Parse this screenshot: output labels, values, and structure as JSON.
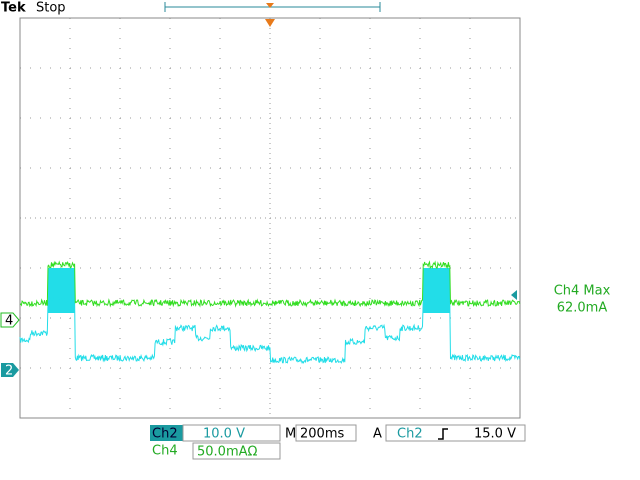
{
  "header": {
    "brand": "Tek",
    "status": "Stop"
  },
  "markers": {
    "ch4": "4",
    "ch2": "2"
  },
  "measurement": {
    "label": "Ch4 Max",
    "value": "62.0mA"
  },
  "status_bar": {
    "ch2_label": "Ch2",
    "ch2_scale": "10.0 V",
    "time_prefix": "M",
    "timebase": "200ms",
    "trigger_mode": "A",
    "trigger_source": "Ch2",
    "trigger_level": "15.0 V",
    "ch4_label": "Ch4",
    "ch4_scale": "50.0mAΩ"
  }
}
